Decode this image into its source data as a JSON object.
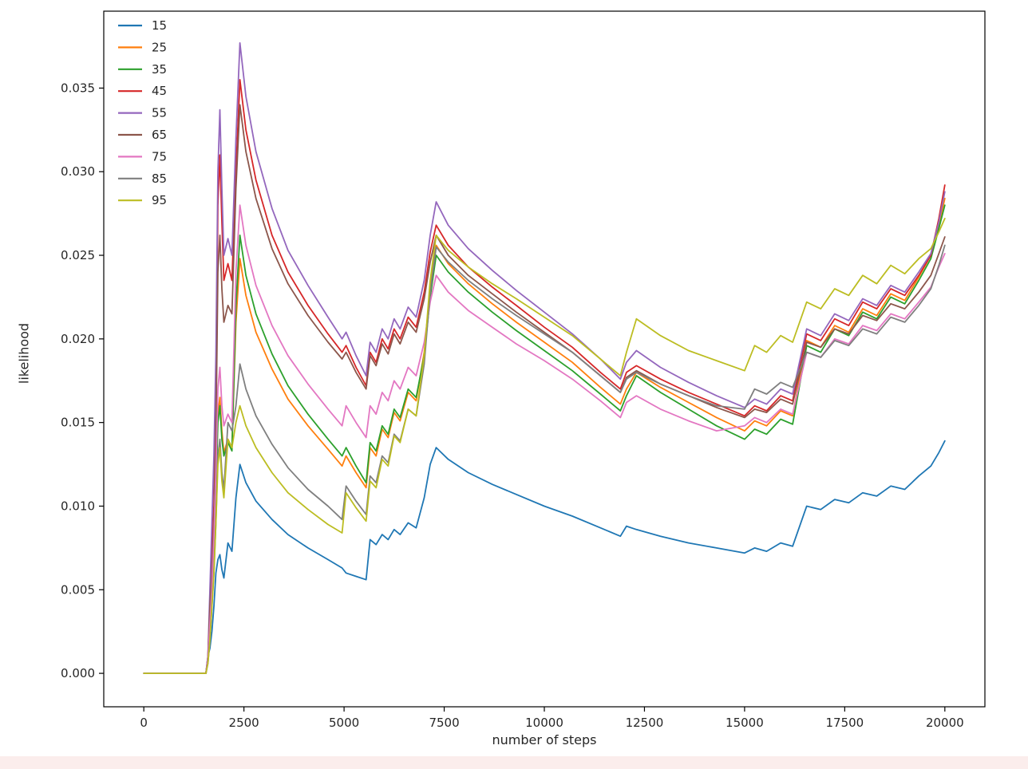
{
  "figure": {
    "background": "#ffffff",
    "bottom_strip_color": "#fbedec",
    "spine_color": "#000000",
    "text_color": "#262626"
  },
  "chart_data": {
    "type": "line",
    "title": "",
    "xlabel": "number of steps",
    "ylabel": "likelihood",
    "xlim": [
      -1000,
      21000
    ],
    "ylim": [
      -0.002,
      0.0396
    ],
    "grid": false,
    "legend_position": "upper left",
    "x_ticks": [
      0,
      2500,
      5000,
      7500,
      10000,
      12500,
      15000,
      17500,
      20000
    ],
    "x_tick_labels": [
      "0",
      "2500",
      "5000",
      "7500",
      "10000",
      "12500",
      "15000",
      "17500",
      "20000"
    ],
    "y_ticks": [
      0.0,
      0.005,
      0.01,
      0.015,
      0.02,
      0.025,
      0.03,
      0.035
    ],
    "y_tick_labels": [
      "0.000",
      "0.005",
      "0.010",
      "0.015",
      "0.020",
      "0.025",
      "0.030",
      "0.035"
    ],
    "x": [
      0,
      1550,
      1600,
      1650,
      1700,
      1750,
      1800,
      1850,
      1900,
      1950,
      2000,
      2100,
      2200,
      2300,
      2400,
      2550,
      2800,
      3200,
      3600,
      4100,
      4600,
      4950,
      5050,
      5300,
      5550,
      5650,
      5800,
      5950,
      6100,
      6250,
      6400,
      6600,
      6800,
      7000,
      7150,
      7300,
      7600,
      8100,
      8700,
      9300,
      10000,
      10700,
      11400,
      11900,
      12050,
      12300,
      12900,
      13600,
      14300,
      15000,
      15250,
      15550,
      15900,
      16200,
      16550,
      16900,
      17250,
      17600,
      17950,
      18300,
      18650,
      19000,
      19350,
      19650,
      19850,
      20000
    ],
    "series": [
      {
        "name": "15",
        "color": "#1f77b4",
        "values": [
          0,
          0,
          0.001,
          0.0015,
          0.0025,
          0.004,
          0.006,
          0.0068,
          0.0071,
          0.0062,
          0.0057,
          0.0078,
          0.0073,
          0.0105,
          0.0125,
          0.0114,
          0.0103,
          0.0092,
          0.0083,
          0.0075,
          0.0068,
          0.0063,
          0.006,
          0.0058,
          0.0056,
          0.008,
          0.0077,
          0.0083,
          0.008,
          0.0086,
          0.0083,
          0.009,
          0.0087,
          0.0105,
          0.0125,
          0.0135,
          0.0128,
          0.012,
          0.0113,
          0.0107,
          0.01,
          0.0094,
          0.0087,
          0.0082,
          0.0088,
          0.0086,
          0.0082,
          0.0078,
          0.0075,
          0.0072,
          0.0075,
          0.0073,
          0.0078,
          0.0076,
          0.01,
          0.0098,
          0.0104,
          0.0102,
          0.0108,
          0.0106,
          0.0112,
          0.011,
          0.0118,
          0.0124,
          0.0132,
          0.0139
        ]
      },
      {
        "name": "25",
        "color": "#ff7f0e",
        "values": [
          0,
          0,
          0.0008,
          0.003,
          0.005,
          0.007,
          0.011,
          0.0155,
          0.0165,
          0.0145,
          0.0132,
          0.014,
          0.0135,
          0.021,
          0.0248,
          0.0226,
          0.0204,
          0.0182,
          0.0164,
          0.0148,
          0.0134,
          0.0124,
          0.013,
          0.012,
          0.0111,
          0.0135,
          0.013,
          0.0146,
          0.0141,
          0.0156,
          0.0151,
          0.0168,
          0.0163,
          0.0192,
          0.023,
          0.0256,
          0.0245,
          0.0233,
          0.0221,
          0.021,
          0.0198,
          0.0186,
          0.0171,
          0.0161,
          0.017,
          0.018,
          0.0171,
          0.0162,
          0.0153,
          0.0145,
          0.0151,
          0.0148,
          0.0157,
          0.0154,
          0.0199,
          0.0195,
          0.0208,
          0.0204,
          0.0218,
          0.0214,
          0.0227,
          0.0223,
          0.0237,
          0.025,
          0.0268,
          0.0284
        ]
      },
      {
        "name": "35",
        "color": "#2ca02c",
        "values": [
          0,
          0,
          0.0008,
          0.003,
          0.005,
          0.007,
          0.011,
          0.015,
          0.016,
          0.014,
          0.013,
          0.0138,
          0.0133,
          0.022,
          0.0262,
          0.0238,
          0.0215,
          0.0191,
          0.0172,
          0.0155,
          0.014,
          0.013,
          0.0135,
          0.0124,
          0.0114,
          0.0138,
          0.0133,
          0.0148,
          0.0143,
          0.0158,
          0.0153,
          0.017,
          0.0165,
          0.019,
          0.0225,
          0.025,
          0.024,
          0.0228,
          0.0216,
          0.0205,
          0.0193,
          0.0181,
          0.0167,
          0.0157,
          0.0166,
          0.0178,
          0.0168,
          0.0158,
          0.0148,
          0.014,
          0.0146,
          0.0143,
          0.0152,
          0.0149,
          0.0196,
          0.0192,
          0.0206,
          0.0202,
          0.0216,
          0.0212,
          0.0225,
          0.0221,
          0.0235,
          0.0248,
          0.0266,
          0.028
        ]
      },
      {
        "name": "45",
        "color": "#d62728",
        "values": [
          0,
          0,
          0.001,
          0.004,
          0.007,
          0.01,
          0.016,
          0.028,
          0.031,
          0.027,
          0.0235,
          0.0245,
          0.0235,
          0.03,
          0.0355,
          0.0325,
          0.0295,
          0.0262,
          0.024,
          0.022,
          0.0203,
          0.0192,
          0.0196,
          0.0183,
          0.0172,
          0.0192,
          0.0186,
          0.02,
          0.0194,
          0.0206,
          0.02,
          0.0213,
          0.0207,
          0.0228,
          0.0252,
          0.0268,
          0.0256,
          0.0243,
          0.0231,
          0.022,
          0.0207,
          0.0195,
          0.018,
          0.017,
          0.018,
          0.0184,
          0.0176,
          0.0168,
          0.0161,
          0.0154,
          0.016,
          0.0157,
          0.0166,
          0.0163,
          0.0203,
          0.0199,
          0.0212,
          0.0208,
          0.0222,
          0.0218,
          0.023,
          0.0226,
          0.0238,
          0.025,
          0.0272,
          0.0292
        ]
      },
      {
        "name": "55",
        "color": "#9467bd",
        "values": [
          0,
          0,
          0.001,
          0.005,
          0.009,
          0.013,
          0.019,
          0.03,
          0.0337,
          0.029,
          0.025,
          0.026,
          0.025,
          0.032,
          0.0377,
          0.0345,
          0.0312,
          0.0278,
          0.0253,
          0.0232,
          0.0213,
          0.02,
          0.0204,
          0.019,
          0.0178,
          0.0198,
          0.0192,
          0.0206,
          0.02,
          0.0212,
          0.0206,
          0.0219,
          0.0213,
          0.0235,
          0.0262,
          0.0282,
          0.0268,
          0.0254,
          0.0241,
          0.0229,
          0.0216,
          0.0203,
          0.0188,
          0.0176,
          0.0186,
          0.0193,
          0.0183,
          0.0174,
          0.0166,
          0.0159,
          0.0164,
          0.0161,
          0.017,
          0.0167,
          0.0206,
          0.0202,
          0.0215,
          0.0211,
          0.0224,
          0.022,
          0.0232,
          0.0228,
          0.024,
          0.0251,
          0.027,
          0.0288
        ]
      },
      {
        "name": "65",
        "color": "#8c564b",
        "values": [
          0,
          0,
          0.0008,
          0.004,
          0.006,
          0.009,
          0.014,
          0.024,
          0.0262,
          0.023,
          0.021,
          0.022,
          0.0215,
          0.029,
          0.034,
          0.0312,
          0.0284,
          0.0254,
          0.0233,
          0.0214,
          0.0198,
          0.0188,
          0.0192,
          0.018,
          0.017,
          0.019,
          0.0184,
          0.0197,
          0.0191,
          0.0203,
          0.0197,
          0.021,
          0.0204,
          0.0224,
          0.0246,
          0.0262,
          0.025,
          0.0238,
          0.0227,
          0.0216,
          0.0204,
          0.0192,
          0.0178,
          0.0168,
          0.0177,
          0.0181,
          0.0173,
          0.0166,
          0.0159,
          0.0153,
          0.0158,
          0.0156,
          0.0164,
          0.0161,
          0.0198,
          0.0195,
          0.0206,
          0.0203,
          0.0214,
          0.0211,
          0.0221,
          0.0218,
          0.0228,
          0.0238,
          0.0251,
          0.0261
        ]
      },
      {
        "name": "75",
        "color": "#e377c2",
        "values": [
          0,
          0,
          0.0008,
          0.003,
          0.005,
          0.008,
          0.012,
          0.017,
          0.0183,
          0.016,
          0.0148,
          0.0155,
          0.015,
          0.024,
          0.028,
          0.0256,
          0.0232,
          0.0208,
          0.019,
          0.0173,
          0.0158,
          0.0148,
          0.016,
          0.015,
          0.0141,
          0.016,
          0.0155,
          0.0168,
          0.0163,
          0.0175,
          0.017,
          0.0183,
          0.0178,
          0.0198,
          0.0222,
          0.0238,
          0.0228,
          0.0217,
          0.0207,
          0.0197,
          0.0187,
          0.0176,
          0.0163,
          0.0153,
          0.0162,
          0.0166,
          0.0158,
          0.0151,
          0.0145,
          0.0148,
          0.0153,
          0.015,
          0.0158,
          0.0155,
          0.0192,
          0.0189,
          0.02,
          0.0197,
          0.0208,
          0.0205,
          0.0215,
          0.0212,
          0.0222,
          0.0231,
          0.0243,
          0.0251
        ]
      },
      {
        "name": "85",
        "color": "#7f7f7f",
        "values": [
          0,
          0,
          0.0006,
          0.002,
          0.004,
          0.006,
          0.009,
          0.013,
          0.014,
          0.012,
          0.011,
          0.015,
          0.0145,
          0.016,
          0.0185,
          0.017,
          0.0154,
          0.0137,
          0.0123,
          0.011,
          0.01,
          0.0092,
          0.0112,
          0.0103,
          0.0095,
          0.0118,
          0.0114,
          0.013,
          0.0126,
          0.0143,
          0.0139,
          0.0158,
          0.0154,
          0.0185,
          0.0228,
          0.0255,
          0.0246,
          0.0235,
          0.0224,
          0.0214,
          0.0203,
          0.0192,
          0.0178,
          0.0168,
          0.0176,
          0.018,
          0.0173,
          0.0166,
          0.016,
          0.0158,
          0.017,
          0.0167,
          0.0174,
          0.0171,
          0.0192,
          0.0189,
          0.0199,
          0.0196,
          0.0206,
          0.0203,
          0.0213,
          0.021,
          0.022,
          0.023,
          0.0244,
          0.0256
        ]
      },
      {
        "name": "95",
        "color": "#bcbd22",
        "values": [
          0,
          0,
          0.0006,
          0.002,
          0.004,
          0.006,
          0.009,
          0.0125,
          0.0135,
          0.0115,
          0.0105,
          0.014,
          0.0135,
          0.015,
          0.016,
          0.0148,
          0.0135,
          0.012,
          0.0108,
          0.0098,
          0.0089,
          0.0084,
          0.0108,
          0.0099,
          0.0091,
          0.0115,
          0.0111,
          0.0128,
          0.0124,
          0.0142,
          0.0138,
          0.0158,
          0.0154,
          0.019,
          0.0235,
          0.0262,
          0.0253,
          0.0243,
          0.0233,
          0.0224,
          0.0213,
          0.0202,
          0.0188,
          0.0178,
          0.0192,
          0.0212,
          0.0202,
          0.0193,
          0.0187,
          0.0181,
          0.0196,
          0.0192,
          0.0202,
          0.0198,
          0.0222,
          0.0218,
          0.023,
          0.0226,
          0.0238,
          0.0233,
          0.0244,
          0.0239,
          0.0248,
          0.0254,
          0.0264,
          0.0272
        ]
      }
    ]
  }
}
